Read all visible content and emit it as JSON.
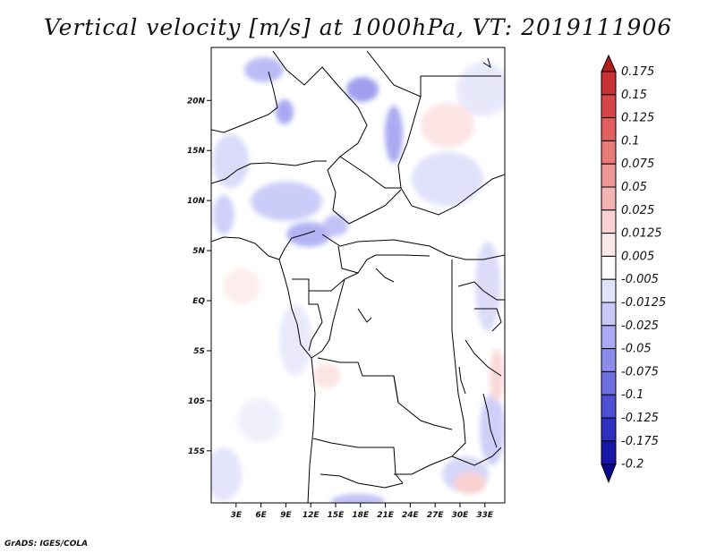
{
  "title": "Vertical velocity [m/s] at 1000hPa, VT: 2019111906",
  "footer": "GrADS: IGES/COLA",
  "map": {
    "lon_range": [
      0,
      35
    ],
    "lat_range": [
      -20,
      25
    ],
    "lon_ticks": [
      "3E",
      "6E",
      "9E",
      "12E",
      "15E",
      "18E",
      "21E",
      "24E",
      "27E",
      "30E",
      "33E"
    ],
    "lat_ticks": [
      "20N",
      "15N",
      "10N",
      "5N",
      "EQ",
      "5S",
      "10S",
      "15S"
    ]
  },
  "colorbar": {
    "labels": [
      "0.175",
      "0.15",
      "0.125",
      "0.1",
      "0.075",
      "0.05",
      "0.025",
      "0.0125",
      "0.005",
      "-0.005",
      "-0.0125",
      "-0.025",
      "-0.05",
      "-0.075",
      "-0.1",
      "-0.125",
      "-0.175",
      "-0.2"
    ],
    "colors": [
      "#b41e1e",
      "#c83232",
      "#d74646",
      "#e15f5f",
      "#e87a7a",
      "#ef9696",
      "#f5b4b4",
      "#f9d2d2",
      "#fce8e8",
      "#ffffff",
      "#e2e2fb",
      "#c8c8f8",
      "#aaaaf2",
      "#8c8ceb",
      "#6e6ee0",
      "#4f4fd3",
      "#3030c0",
      "#1818a8",
      "#0a0a90"
    ]
  }
}
